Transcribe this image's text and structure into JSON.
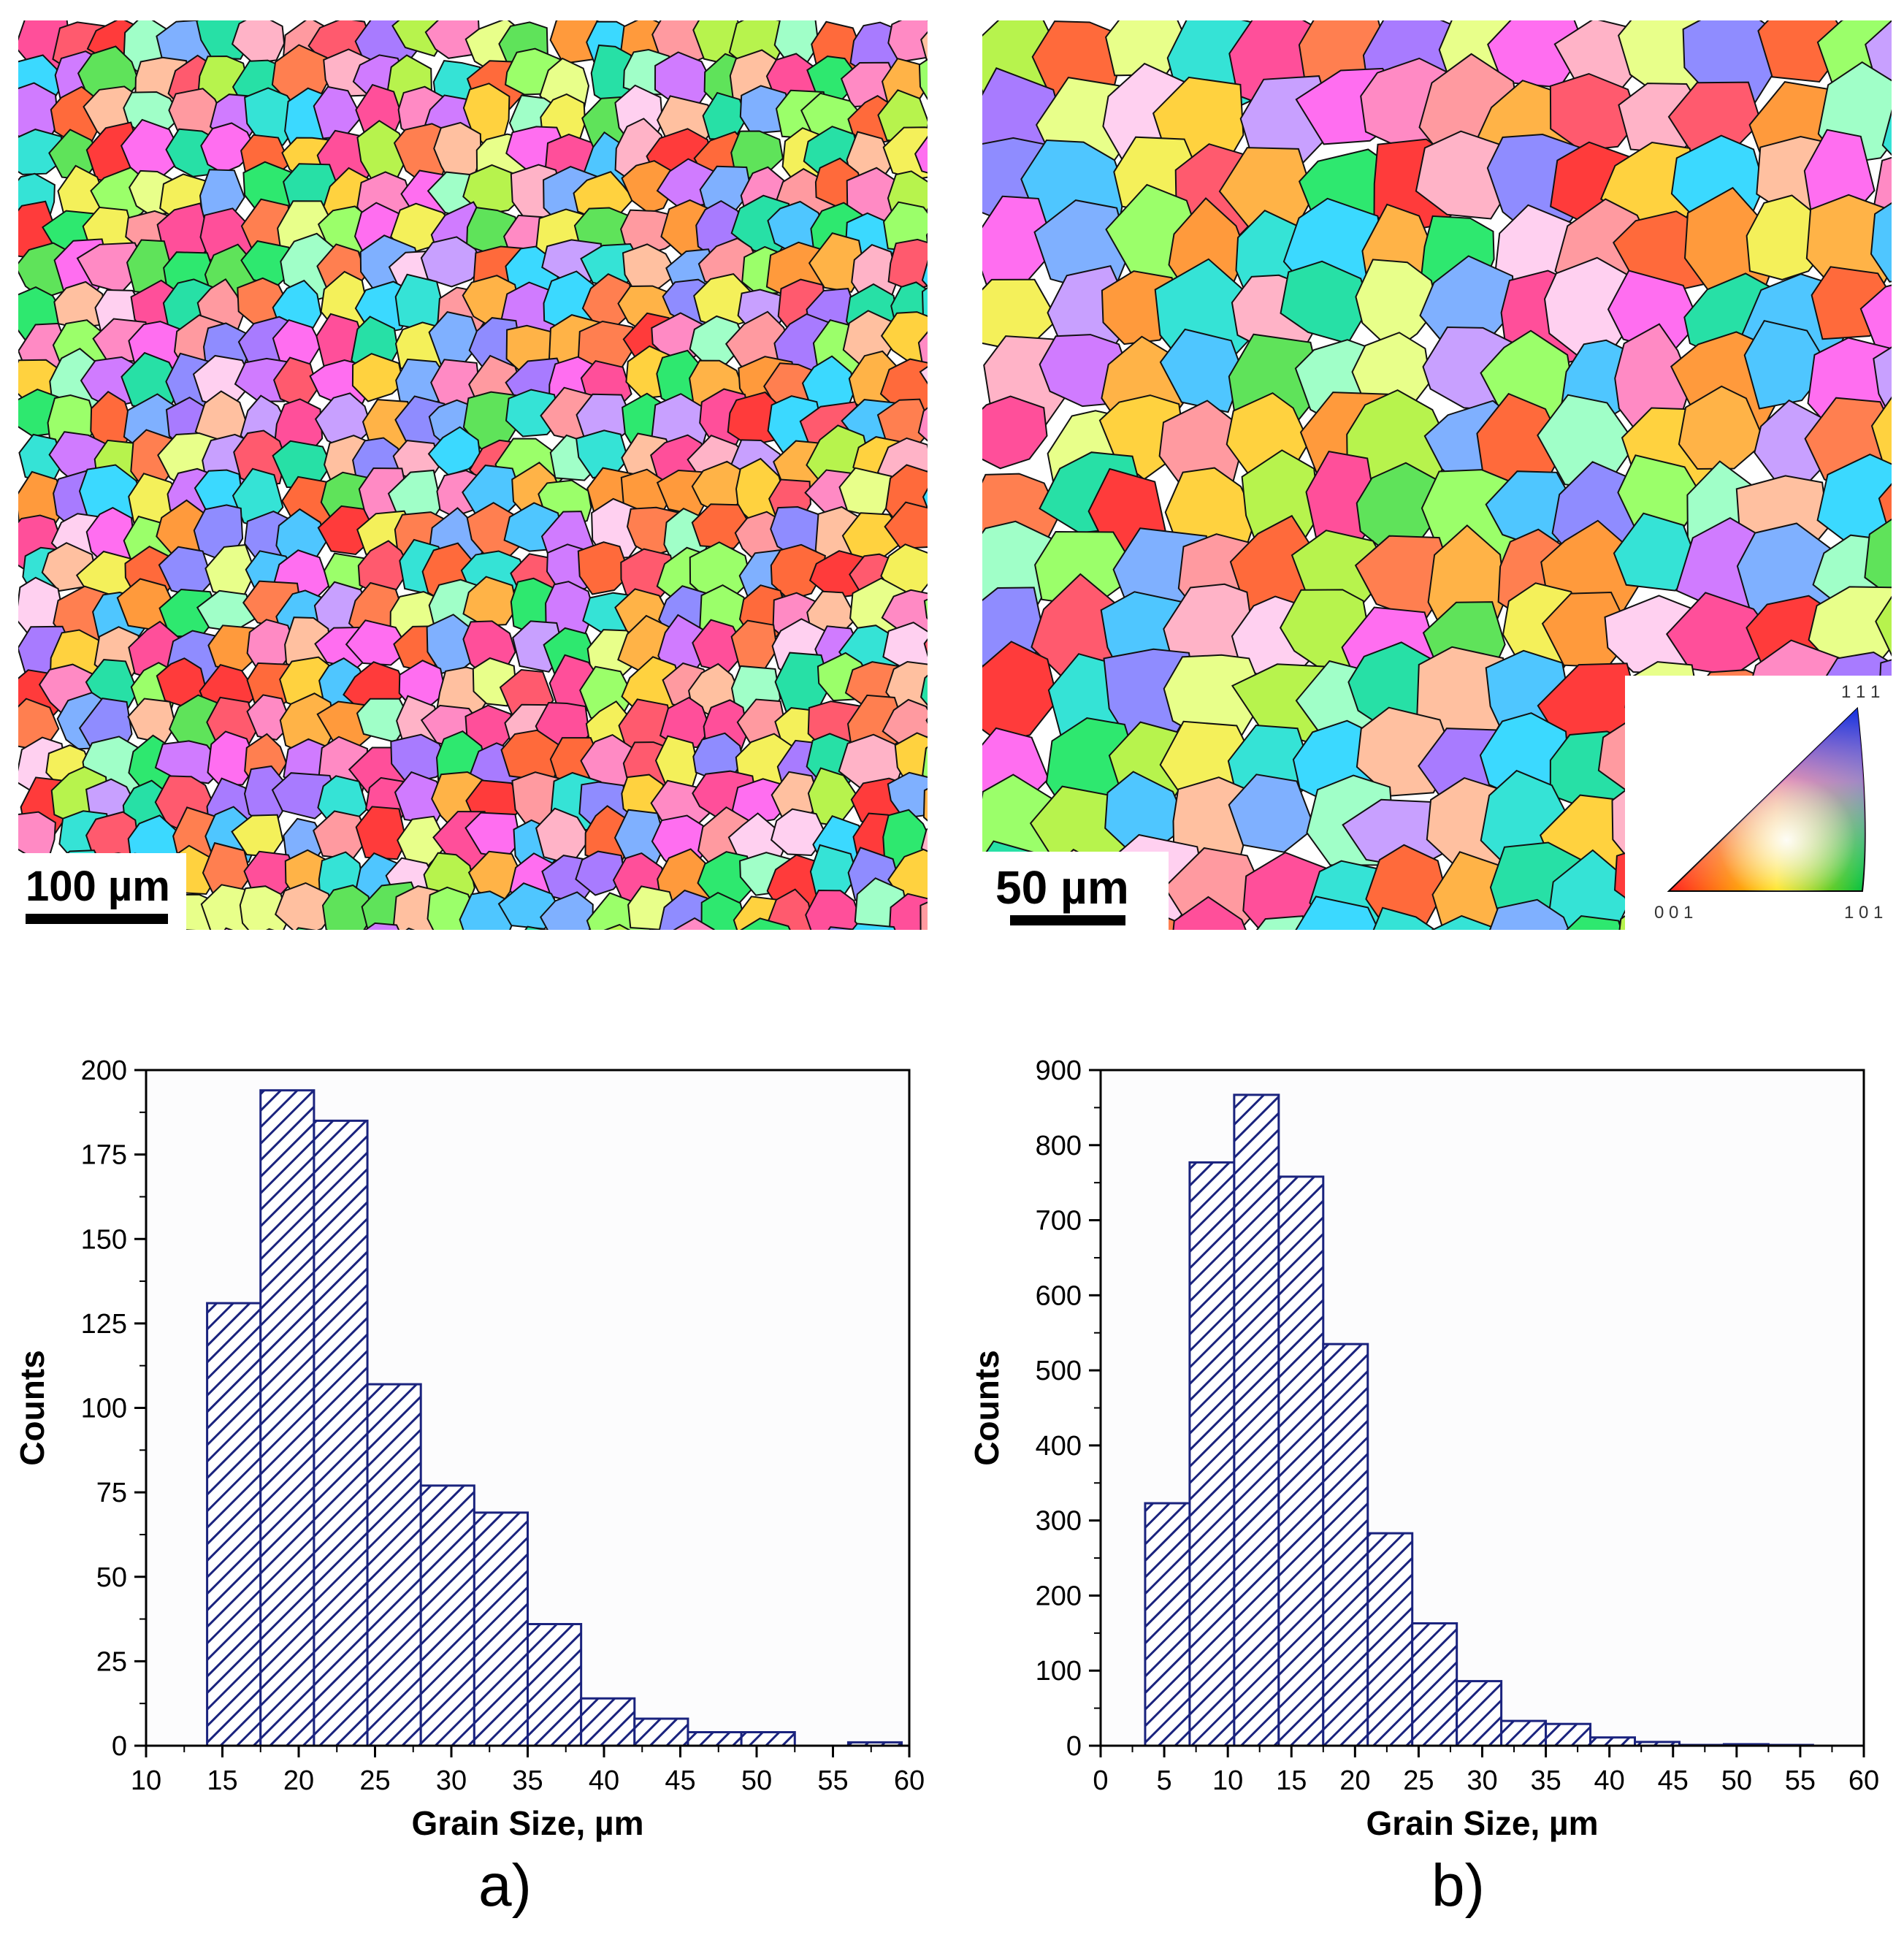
{
  "figure": {
    "panel_a": {
      "caption": "a)",
      "scale_bar_label": "100 µm"
    },
    "panel_b": {
      "caption": "b)",
      "scale_bar_label": "50 µm",
      "ipf_legend": {
        "top_label": "1 1 1",
        "left_label": "0 0 1",
        "right_label": "1 0 1"
      }
    }
  },
  "chart_data": [
    {
      "type": "bar",
      "title": "",
      "xlabel": "Grain Size, µm",
      "ylabel": "Counts",
      "xlim": [
        10,
        60
      ],
      "ylim": [
        0,
        200
      ],
      "x_ticks": [
        10,
        15,
        20,
        25,
        30,
        35,
        40,
        45,
        50,
        55,
        60
      ],
      "y_ticks": [
        0,
        25,
        50,
        75,
        100,
        125,
        150,
        175,
        200
      ],
      "bins": [
        {
          "start": 14.0,
          "end": 17.5,
          "count": 131
        },
        {
          "start": 17.5,
          "end": 21.0,
          "count": 194
        },
        {
          "start": 21.0,
          "end": 24.5,
          "count": 185
        },
        {
          "start": 24.5,
          "end": 28.0,
          "count": 107
        },
        {
          "start": 28.0,
          "end": 31.5,
          "count": 77
        },
        {
          "start": 31.5,
          "end": 35.0,
          "count": 69
        },
        {
          "start": 35.0,
          "end": 38.5,
          "count": 36
        },
        {
          "start": 38.5,
          "end": 42.0,
          "count": 14
        },
        {
          "start": 42.0,
          "end": 45.5,
          "count": 8
        },
        {
          "start": 45.5,
          "end": 49.0,
          "count": 4
        },
        {
          "start": 49.0,
          "end": 52.5,
          "count": 4
        },
        {
          "start": 56.0,
          "end": 59.5,
          "count": 1
        }
      ],
      "bar_fill": "hatched",
      "bar_color": "#1a237e"
    },
    {
      "type": "bar",
      "title": "",
      "xlabel": "Grain Size, µm",
      "ylabel": "Counts",
      "xlim": [
        0,
        60
      ],
      "ylim": [
        0,
        900
      ],
      "x_ticks": [
        0,
        5,
        10,
        15,
        20,
        25,
        30,
        35,
        40,
        45,
        50,
        55,
        60
      ],
      "y_ticks": [
        0,
        100,
        200,
        300,
        400,
        500,
        600,
        700,
        800,
        900
      ],
      "bins": [
        {
          "start": 3.5,
          "end": 7.0,
          "count": 323
        },
        {
          "start": 7.0,
          "end": 10.5,
          "count": 777
        },
        {
          "start": 10.5,
          "end": 14.0,
          "count": 867
        },
        {
          "start": 14.0,
          "end": 17.5,
          "count": 758
        },
        {
          "start": 17.5,
          "end": 21.0,
          "count": 535
        },
        {
          "start": 21.0,
          "end": 24.5,
          "count": 283
        },
        {
          "start": 24.5,
          "end": 28.0,
          "count": 163
        },
        {
          "start": 28.0,
          "end": 31.5,
          "count": 86
        },
        {
          "start": 31.5,
          "end": 35.0,
          "count": 33
        },
        {
          "start": 35.0,
          "end": 38.5,
          "count": 29
        },
        {
          "start": 38.5,
          "end": 42.0,
          "count": 11
        },
        {
          "start": 42.0,
          "end": 45.5,
          "count": 5
        },
        {
          "start": 45.5,
          "end": 49.0,
          "count": 1
        },
        {
          "start": 49.0,
          "end": 52.5,
          "count": 2
        },
        {
          "start": 52.5,
          "end": 56.0,
          "count": 1
        }
      ],
      "bar_fill": "hatched",
      "bar_color": "#1a237e"
    }
  ]
}
